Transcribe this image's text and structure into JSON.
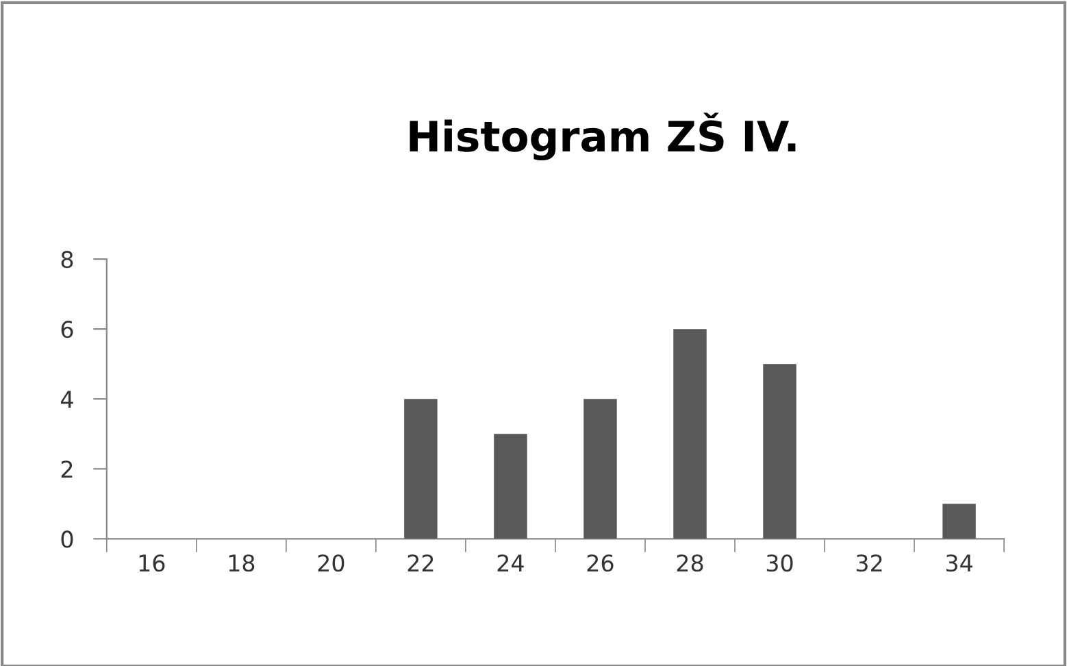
{
  "chart_data": {
    "type": "bar",
    "title": "Histogram ZŠ IV.",
    "categories": [
      "16",
      "18",
      "20",
      "22",
      "24",
      "26",
      "28",
      "30",
      "32",
      "34"
    ],
    "values": [
      0,
      0,
      0,
      4,
      3,
      4,
      6,
      5,
      0,
      1
    ],
    "color": "#595959",
    "ylim": [
      0,
      8
    ],
    "yticks": [
      0,
      2,
      4,
      6,
      8
    ],
    "grid": false,
    "legend": false
  }
}
